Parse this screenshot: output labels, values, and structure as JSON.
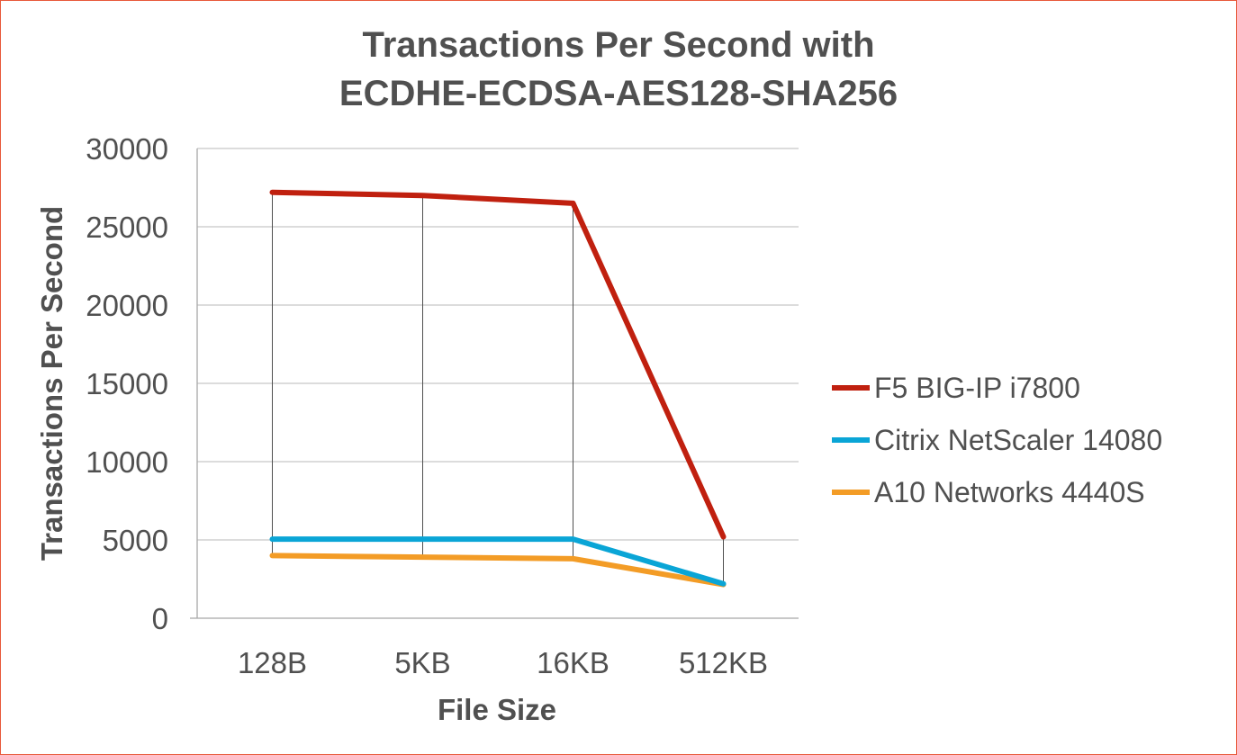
{
  "chart_data": {
    "type": "line",
    "title": [
      "Transactions Per Second with",
      "ECDHE-ECDSA-AES128-SHA256"
    ],
    "xlabel": "File Size",
    "ylabel": "Transactions Per Second",
    "categories": [
      "128B",
      "5KB",
      "16KB",
      "512KB"
    ],
    "ylim": [
      0,
      30000
    ],
    "yticks": [
      0,
      5000,
      10000,
      15000,
      20000,
      25000,
      30000
    ],
    "grid": "horizontal",
    "drop_lines": true,
    "legend_position": "right",
    "series": [
      {
        "name": "F5 BIG-IP i7800",
        "color": "#c0200f",
        "values": [
          27200,
          27000,
          26500,
          5200
        ]
      },
      {
        "name": "Citrix NetScaler 14080",
        "color": "#0aa5d6",
        "values": [
          5050,
          5050,
          5050,
          2200
        ]
      },
      {
        "name": "A10 Networks 4440S",
        "color": "#f39c26",
        "values": [
          4000,
          3900,
          3800,
          2150
        ]
      }
    ]
  }
}
